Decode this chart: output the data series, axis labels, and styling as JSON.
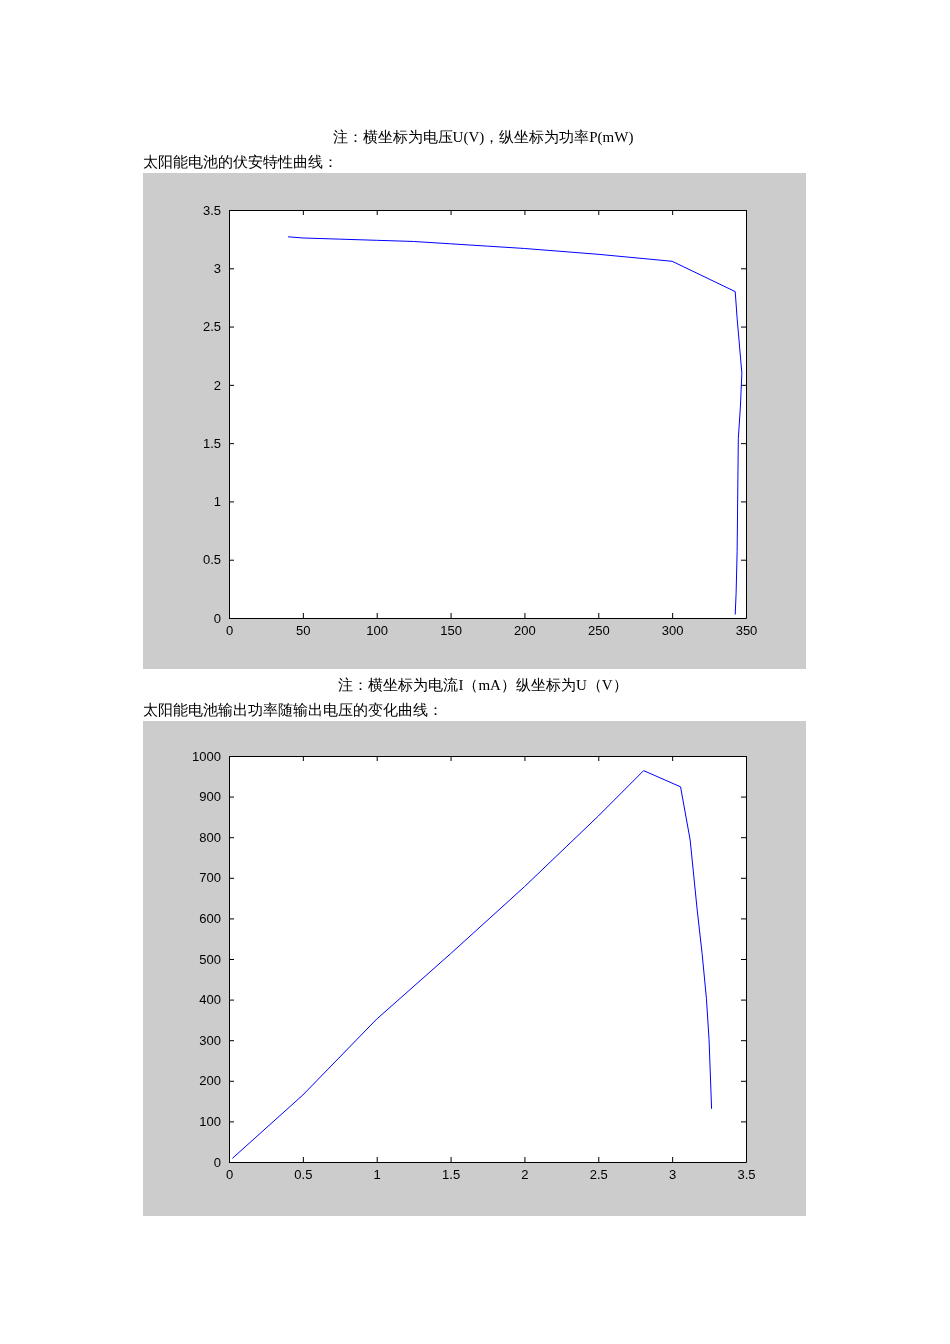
{
  "chart_data": [
    {
      "type": "line",
      "title": "太阳能电池的伏安特性曲线：",
      "annotations": [
        "注：横坐标为电压U(V)，纵坐标为功率P(mW)",
        "注：横坐标为电流I（mA）纵坐标为U（V）"
      ],
      "series": [
        {
          "color": "#0000ff",
          "x": [
            40,
            50,
            75,
            100,
            125,
            150,
            175,
            200,
            250,
            300,
            342.7,
            344,
            347.2,
            346.2,
            344.8,
            344,
            343.3,
            342.7
          ],
          "values": [
            3.27,
            3.26,
            3.25,
            3.24,
            3.23,
            3.21,
            3.19,
            3.17,
            3.12,
            3.06,
            2.8,
            2.57,
            2.1,
            1.81,
            1.54,
            0.57,
            0.21,
            0.03
          ]
        }
      ],
      "xlim": [
        0,
        350
      ],
      "xticks": [
        0,
        50,
        100,
        150,
        200,
        250,
        300,
        350
      ],
      "ylim": [
        0,
        3.5
      ],
      "yticks": [
        0,
        0.5,
        1,
        1.5,
        2,
        2.5,
        3,
        3.5
      ],
      "grid": false,
      "marker": "none",
      "line_style": "solid"
    },
    {
      "type": "line",
      "title": "太阳能电池输出功率随输出电压的变化曲线：",
      "series": [
        {
          "color": "#0000ff",
          "x": [
            0.023,
            0.5,
            1.0,
            1.5,
            2.0,
            2.5,
            2.807,
            3.057,
            3.122,
            3.169,
            3.203,
            3.232,
            3.25,
            3.267
          ],
          "values": [
            9,
            165,
            352,
            513,
            678,
            852,
            964,
            924,
            793,
            623,
            513,
            403,
            301,
            131
          ]
        }
      ],
      "xlim": [
        0,
        3.5
      ],
      "xticks": [
        0,
        0.5,
        1,
        1.5,
        2,
        2.5,
        3,
        3.5
      ],
      "ylim": [
        0,
        1000
      ],
      "yticks": [
        0,
        100,
        200,
        300,
        400,
        500,
        600,
        700,
        800,
        900,
        1000
      ],
      "grid": false,
      "marker": "none",
      "line_style": "solid"
    }
  ]
}
